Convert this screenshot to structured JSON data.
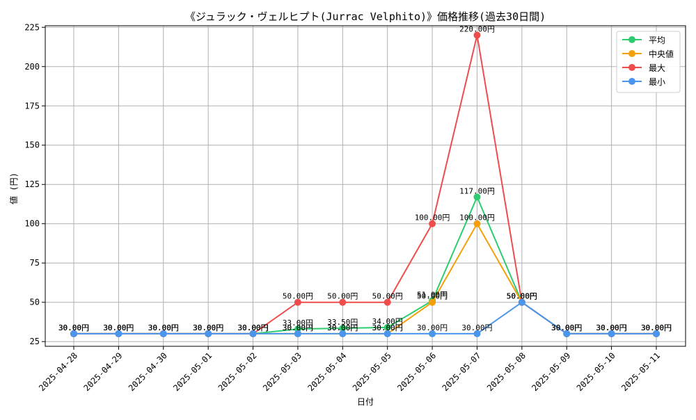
{
  "chart_data": {
    "type": "line",
    "title": "《ジュラック・ヴェルヒプト(Jurrac Velphito)》価格推移(過去30日間)",
    "xlabel": "日付",
    "ylabel": "値 (円)",
    "ylim": [
      22,
      226
    ],
    "yticks": [
      25,
      50,
      75,
      100,
      125,
      150,
      175,
      200,
      225
    ],
    "grid": true,
    "legend_position": "top-right",
    "value_suffix": "円",
    "categories": [
      "2025-04-28",
      "2025-04-29",
      "2025-04-30",
      "2025-05-01",
      "2025-05-02",
      "2025-05-03",
      "2025-05-04",
      "2025-05-05",
      "2025-05-06",
      "2025-05-07",
      "2025-05-08",
      "2025-05-09",
      "2025-05-10",
      "2025-05-11"
    ],
    "series": [
      {
        "name": "平均",
        "color": "#2ecc71",
        "values": [
          30,
          30,
          30,
          30,
          30,
          33,
          33.5,
          34,
          51,
          117,
          50,
          30,
          30,
          30
        ]
      },
      {
        "name": "中央値",
        "color": "#f5a00b",
        "values": [
          30,
          30,
          30,
          30,
          30,
          30,
          30,
          30,
          50,
          100,
          50,
          30,
          30,
          30
        ]
      },
      {
        "name": "最大",
        "color": "#ef4c4c",
        "values": [
          30,
          30,
          30,
          30,
          30,
          50,
          50,
          50,
          100,
          220,
          50,
          30,
          30,
          30
        ]
      },
      {
        "name": "最小",
        "color": "#4a96ee",
        "values": [
          30,
          30,
          30,
          30,
          30,
          30,
          30,
          30,
          30,
          30,
          50,
          30,
          30,
          30
        ]
      }
    ]
  }
}
